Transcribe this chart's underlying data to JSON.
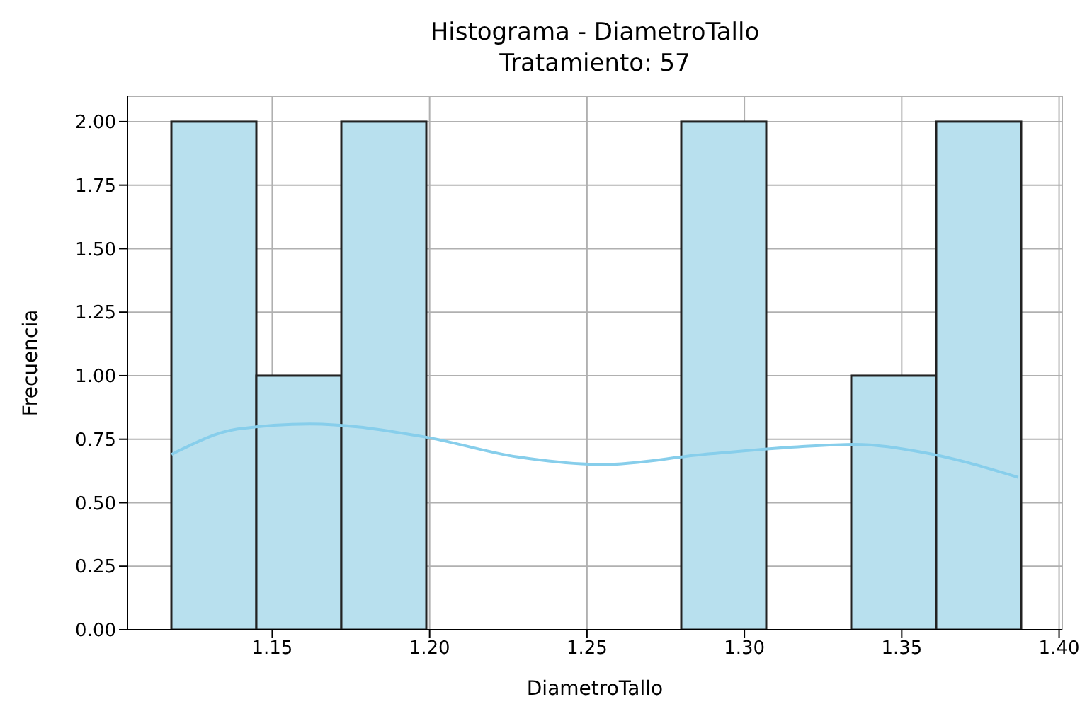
{
  "chart_data": {
    "type": "histogram",
    "title": "Histograma - DiametroTallo",
    "subtitle": "Tratamiento: 57",
    "xlabel": "DiametroTallo",
    "ylabel": "Frecuencia",
    "series": [
      {
        "color": "#b8e0ee",
        "bins": [
          1.118,
          1.145,
          1.172,
          1.199,
          1.226,
          1.253,
          1.28,
          1.307,
          1.334,
          1.361,
          1.388
        ],
        "values": [
          2,
          1,
          2,
          0,
          0,
          0,
          2,
          0,
          1,
          2
        ]
      },
      {
        "type": "line",
        "color": "#87ceeb",
        "x": [
          1.118,
          1.139,
          1.162,
          1.198,
          1.228,
          1.255,
          1.287,
          1.317,
          1.335,
          1.356,
          1.387
        ],
        "values": [
          0.69,
          0.79,
          0.81,
          0.76,
          0.68,
          0.65,
          0.69,
          0.72,
          0.73,
          0.7,
          0.6
        ]
      }
    ],
    "xlim": [
      1.104,
      1.401
    ],
    "xticks": [
      {
        "value": 1.15,
        "label": "1.15"
      },
      {
        "value": 1.2,
        "label": "1.20"
      },
      {
        "value": 1.25,
        "label": "1.25"
      },
      {
        "value": 1.3,
        "label": "1.30"
      },
      {
        "value": 1.35,
        "label": "1.35"
      },
      {
        "value": 1.4,
        "label": "1.40"
      }
    ],
    "ylim": [
      0,
      2.1
    ],
    "yticks": [
      {
        "value": 0,
        "label": "0.00"
      },
      {
        "value": 0.25,
        "label": "0.25"
      },
      {
        "value": 0.5,
        "label": "0.50"
      },
      {
        "value": 0.75,
        "label": "0.75"
      },
      {
        "value": 1,
        "label": "1.00"
      },
      {
        "value": 1.25,
        "label": "1.25"
      },
      {
        "value": 1.5,
        "label": "1.50"
      },
      {
        "value": 1.75,
        "label": "1.75"
      },
      {
        "value": 2,
        "label": "2.00"
      }
    ],
    "grid": true
  }
}
